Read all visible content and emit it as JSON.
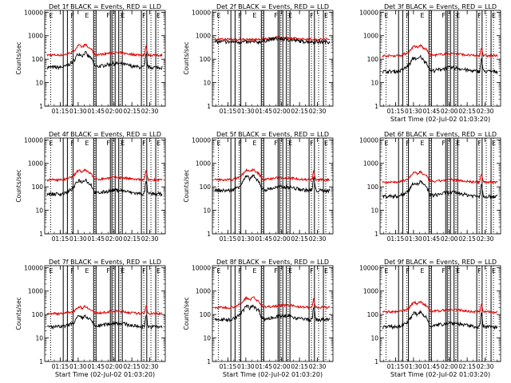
{
  "colors": {
    "events": "#000000",
    "lld": "#e00000",
    "axis": "#000000",
    "marker": "#000000"
  },
  "common": {
    "ylabel": "Counts/sec",
    "xlabel": "Start Time (02-Jul-02 01:03:20)",
    "yticks": [
      1,
      10,
      100,
      1000,
      10000
    ],
    "ytick_labels": [
      "1",
      "10",
      "100",
      "1000",
      "10000"
    ],
    "xticks": [
      75,
      90,
      105,
      120,
      135,
      150
    ],
    "xtick_labels": [
      "01:15",
      "01:30",
      "01:45",
      "02:00",
      "02:15",
      "02:30"
    ],
    "xlim": [
      62,
      163
    ],
    "ylim": [
      1,
      12000
    ],
    "marker_letters": [
      "E",
      "F",
      "E",
      "F",
      "E",
      "F",
      "E"
    ]
  },
  "markers": {
    "solid": [
      77.5,
      81,
      85.8,
      103,
      105,
      117,
      118.3,
      121,
      124,
      127,
      143,
      147.5,
      155
    ],
    "dotted": [
      67,
      84.5,
      104,
      119.5,
      125.5,
      145,
      151,
      157
    ],
    "letters_x": [
      65,
      83,
      95,
      113,
      125,
      143,
      155
    ]
  },
  "chart_data": [
    {
      "type": "line",
      "title": "Det 1f  BLACK = Events, RED = LLD",
      "profile": "spiky",
      "base_events": 45,
      "base_lld": 150,
      "show_xlabel": false,
      "show_ylabel": true
    },
    {
      "type": "line",
      "title": "Det 2f  BLACK = Events, RED = LLD",
      "profile": "flat",
      "base_events": 550,
      "base_lld": 700,
      "show_xlabel": false,
      "show_ylabel": true
    },
    {
      "type": "line",
      "title": "Det 3f  BLACK = Events, RED = LLD",
      "profile": "spiky",
      "base_events": 30,
      "base_lld": 140,
      "show_xlabel": true,
      "show_ylabel": false
    },
    {
      "type": "line",
      "title": "Det 4f  BLACK = Events, RED = LLD",
      "profile": "spiky",
      "base_events": 50,
      "base_lld": 200,
      "show_xlabel": false,
      "show_ylabel": true
    },
    {
      "type": "line",
      "title": "Det 5f  BLACK = Events, RED = LLD",
      "profile": "spiky",
      "base_events": 70,
      "base_lld": 200,
      "show_xlabel": false,
      "show_ylabel": true
    },
    {
      "type": "line",
      "title": "Det 6f  BLACK = Events, RED = LLD",
      "profile": "spiky",
      "base_events": 40,
      "base_lld": 160,
      "show_xlabel": false,
      "show_ylabel": false
    },
    {
      "type": "line",
      "title": "Det 7f  BLACK = Events, RED = LLD",
      "profile": "smooth",
      "base_events": 30,
      "base_lld": 110,
      "show_xlabel": true,
      "show_ylabel": true
    },
    {
      "type": "line",
      "title": "Det 8f  BLACK = Events, RED = LLD",
      "profile": "spiky",
      "base_events": 60,
      "base_lld": 200,
      "show_xlabel": true,
      "show_ylabel": true
    },
    {
      "type": "line",
      "title": "Det 9f  BLACK = Events, RED = LLD",
      "profile": "spiky",
      "base_events": 30,
      "base_lld": 130,
      "show_xlabel": true,
      "show_ylabel": false
    }
  ]
}
